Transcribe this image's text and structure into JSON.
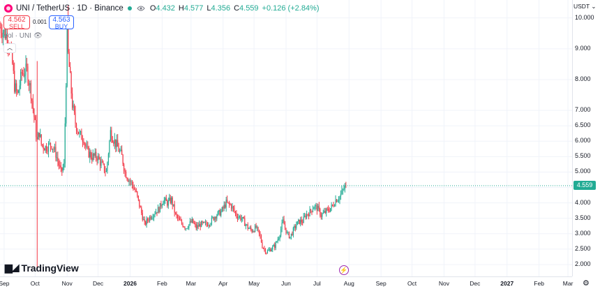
{
  "legend": {
    "title": "UNI / TetherUS · 1D · Binance",
    "ohlc": [
      {
        "k": "O",
        "v": "4.432"
      },
      {
        "k": "H",
        "v": "4.577"
      },
      {
        "k": "L",
        "v": "4.356"
      },
      {
        "k": "C",
        "v": "4.559"
      },
      {
        "k": "",
        "v": "+0.126 (+2.84%)"
      }
    ]
  },
  "trade": {
    "sell_price": "4.562",
    "sell_label": "SELL",
    "spread": "0.001",
    "buy_price": "4.563",
    "buy_label": "BUY"
  },
  "volume_label": "Vol · UNI",
  "brand": "TradingView",
  "currency": "USDT",
  "last_price": "4.559",
  "colors": {
    "up": "#22ab94",
    "down": "#f23645",
    "grid": "#f0f3fa"
  },
  "price_ticks": [
    {
      "label": "10.000",
      "v": 10.0
    },
    {
      "label": "9.000",
      "v": 9.0
    },
    {
      "label": "8.000",
      "v": 8.0
    },
    {
      "label": "7.000",
      "v": 7.0
    },
    {
      "label": "6.500",
      "v": 6.5
    },
    {
      "label": "6.000",
      "v": 6.0
    },
    {
      "label": "5.500",
      "v": 5.5
    },
    {
      "label": "5.000",
      "v": 5.0
    },
    {
      "label": "4.500",
      "v": 4.5
    },
    {
      "label": "4.000",
      "v": 4.0
    },
    {
      "label": "3.500",
      "v": 3.5
    },
    {
      "label": "3.000",
      "v": 3.0
    },
    {
      "label": "2.500",
      "v": 2.5
    },
    {
      "label": "2.000",
      "v": 2.0
    }
  ],
  "time_ticks": [
    {
      "label": "Sep",
      "d": 0,
      "bold": false
    },
    {
      "label": "Oct",
      "d": 30,
      "bold": false
    },
    {
      "label": "Nov",
      "d": 61,
      "bold": false
    },
    {
      "label": "Dec",
      "d": 91,
      "bold": false
    },
    {
      "label": "2026",
      "d": 122,
      "bold": true
    },
    {
      "label": "Feb",
      "d": 153,
      "bold": false
    },
    {
      "label": "Mar",
      "d": 181,
      "bold": false
    },
    {
      "label": "Apr",
      "d": 212,
      "bold": false
    },
    {
      "label": "May",
      "d": 242,
      "bold": false
    },
    {
      "label": "Jun",
      "d": 273,
      "bold": false
    },
    {
      "label": "Jul",
      "d": 303,
      "bold": false
    },
    {
      "label": "Aug",
      "d": 334,
      "bold": false
    },
    {
      "label": "Sep",
      "d": 365,
      "bold": false
    },
    {
      "label": "Oct",
      "d": 395,
      "bold": false
    },
    {
      "label": "Nov",
      "d": 426,
      "bold": false
    },
    {
      "label": "Dec",
      "d": 456,
      "bold": false
    },
    {
      "label": "2027",
      "d": 487,
      "bold": true
    },
    {
      "label": "Feb",
      "d": 518,
      "bold": false
    },
    {
      "label": "Mar",
      "d": 546,
      "bold": false
    }
  ],
  "chart_data": {
    "type": "line",
    "series": [
      {
        "x": [
          -4,
          3,
          6,
          8,
          10,
          13,
          17,
          22,
          26,
          32,
          34,
          36,
          40,
          46,
          50,
          55,
          58,
          61,
          62,
          64,
          66,
          69,
          73,
          77,
          80,
          85,
          90,
          95,
          99,
          103,
          107,
          110,
          114,
          117,
          120,
          124,
          128,
          132,
          136,
          140,
          143,
          146,
          150,
          154,
          158,
          162,
          166,
          170,
          176,
          182,
          186,
          190,
          196,
          200,
          205,
          210,
          215,
          220,
          225,
          230,
          236,
          240,
          244,
          248,
          250,
          254,
          258,
          262,
          266,
          270,
          274,
          277,
          280,
          283,
          286,
          289,
          292,
          296,
          300,
          304,
          307,
          311,
          315,
          318,
          321,
          325,
          328,
          331
        ],
        "y": [
          9.7,
          9.4,
          9.0,
          8.5,
          7.8,
          7.5,
          8.2,
          8.3,
          7.6,
          6.0,
          6.3,
          5.9,
          5.8,
          5.9,
          5.6,
          5.0,
          5.2,
          9.4,
          8.8,
          8.0,
          7.2,
          6.6,
          6.2,
          6.1,
          5.7,
          5.5,
          5.5,
          5.2,
          5.0,
          6.3,
          6.0,
          5.8,
          5.5,
          5.0,
          4.8,
          4.6,
          4.3,
          3.8,
          3.3,
          3.5,
          3.6,
          3.7,
          3.8,
          4.1,
          4.0,
          4.1,
          3.6,
          3.4,
          3.2,
          3.4,
          3.2,
          3.3,
          3.3,
          3.4,
          3.6,
          3.7,
          4.0,
          3.9,
          3.6,
          3.5,
          3.2,
          3.1,
          3.2,
          2.9,
          2.6,
          2.4,
          2.5,
          2.6,
          2.9,
          3.4,
          3.0,
          2.9,
          3.1,
          3.3,
          3.4,
          3.4,
          3.6,
          3.7,
          3.9,
          3.8,
          3.6,
          3.7,
          3.8,
          3.9,
          4.1,
          4.2,
          4.4,
          4.559
        ]
      }
    ],
    "ylim": [
      1.75,
      10.4
    ],
    "xlim": [
      -4,
      550
    ],
    "xlabel": "",
    "ylabel": "",
    "grid": true,
    "legend": "top-left"
  }
}
